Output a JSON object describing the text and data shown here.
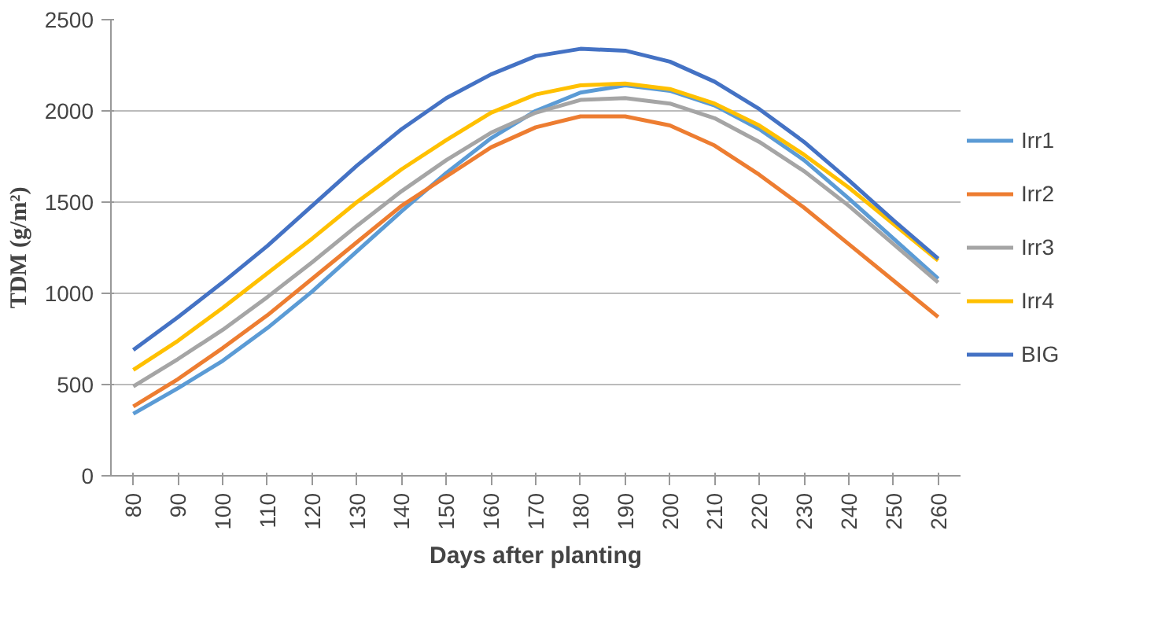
{
  "chart_data": {
    "type": "line",
    "xlabel": "Days after planting",
    "ylabel": "TDM (g/m²)",
    "categories": [
      "80",
      "90",
      "100",
      "110",
      "120",
      "130",
      "140",
      "150",
      "160",
      "170",
      "180",
      "190",
      "200",
      "210",
      "220",
      "230",
      "240",
      "250",
      "260"
    ],
    "ylim": [
      0,
      2500
    ],
    "yticks": [
      0,
      500,
      1000,
      1500,
      2000,
      2500
    ],
    "grid": "y",
    "legend": "right",
    "marker": "none",
    "line_style": "solid",
    "series": [
      {
        "name": "Irr1",
        "color": "#5b9bd5",
        "values": [
          340,
          480,
          630,
          810,
          1010,
          1230,
          1450,
          1660,
          1850,
          2000,
          2100,
          2140,
          2110,
          2030,
          1900,
          1730,
          1520,
          1300,
          1080
        ]
      },
      {
        "name": "Irr2",
        "color": "#ed7d31",
        "values": [
          380,
          530,
          700,
          880,
          1080,
          1280,
          1480,
          1640,
          1800,
          1910,
          1970,
          1970,
          1920,
          1810,
          1650,
          1470,
          1270,
          1070,
          870
        ]
      },
      {
        "name": "Irr3",
        "color": "#a5a5a5",
        "values": [
          490,
          640,
          800,
          980,
          1170,
          1370,
          1560,
          1730,
          1880,
          1990,
          2060,
          2070,
          2040,
          1960,
          1830,
          1670,
          1480,
          1270,
          1060
        ]
      },
      {
        "name": "Irr4",
        "color": "#ffc000",
        "values": [
          580,
          740,
          920,
          1110,
          1300,
          1500,
          1680,
          1840,
          1990,
          2090,
          2140,
          2150,
          2120,
          2040,
          1920,
          1760,
          1580,
          1380,
          1180
        ]
      },
      {
        "name": "BIG",
        "color": "#4472c4",
        "values": [
          690,
          870,
          1060,
          1260,
          1480,
          1700,
          1900,
          2070,
          2200,
          2300,
          2340,
          2330,
          2270,
          2160,
          2010,
          1830,
          1620,
          1400,
          1190
        ]
      }
    ]
  }
}
